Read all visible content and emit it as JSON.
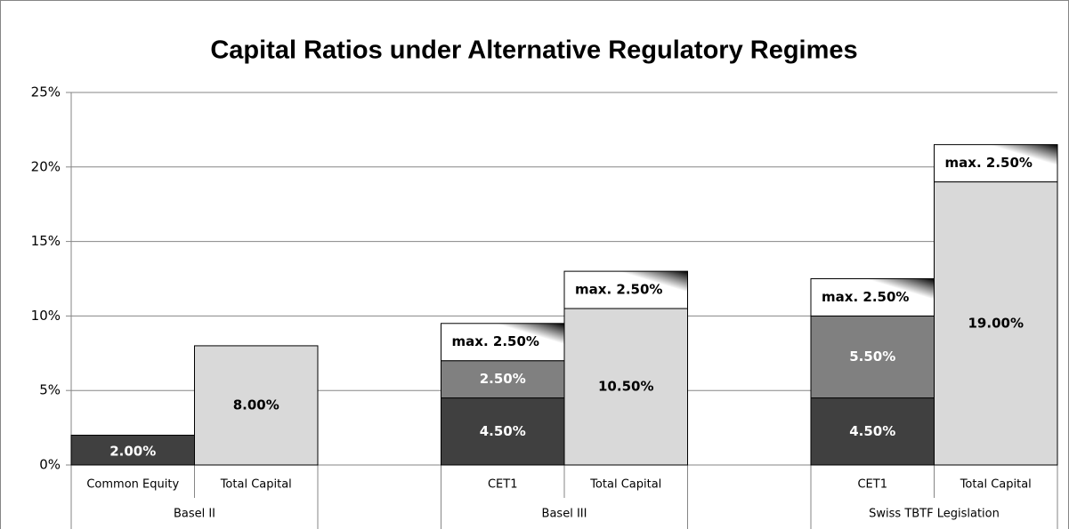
{
  "chart_data": {
    "type": "bar",
    "stacked": true,
    "title": "Capital Ratios under Alternative Regulatory Regimes",
    "groups": [
      {
        "label": "Basel II",
        "categories": [
          "Common Equity",
          "Total Capital"
        ]
      },
      {
        "label": "Basel III",
        "categories": [
          "CET1",
          "Total Capital"
        ]
      },
      {
        "label": "Swiss TBTF Legislation",
        "categories": [
          "CET1",
          "Total Capital"
        ]
      }
    ],
    "series": [
      {
        "color": "#404040",
        "label_color": "#ffffff",
        "values": [
          2.0,
          null,
          4.5,
          null,
          4.5,
          null
        ],
        "value_labels": [
          "2.00%",
          null,
          "4.50%",
          null,
          "4.50%",
          null
        ]
      },
      {
        "color": "#808080",
        "label_color": "#ffffff",
        "values": [
          null,
          null,
          2.5,
          null,
          5.5,
          null
        ],
        "value_labels": [
          null,
          null,
          "2.50%",
          null,
          "5.50%",
          null
        ]
      },
      {
        "color": "#d9d9d9",
        "label_color": "#000000",
        "values": [
          null,
          8.0,
          null,
          10.5,
          null,
          19.0
        ],
        "value_labels": [
          null,
          "8.00%",
          null,
          "10.50%",
          null,
          "19.00%"
        ]
      },
      {
        "color": "#000000",
        "label_color": "#000000",
        "values": [
          null,
          null,
          2.5,
          2.5,
          2.5,
          2.5
        ],
        "value_labels": [
          null,
          null,
          "max. 2.50%",
          "max. 2.50%",
          "max. 2.50%",
          "max. 2.50%"
        ]
      }
    ],
    "ylim": [
      0,
      25
    ],
    "yticks": [
      {
        "value": 0,
        "label": "0%"
      },
      {
        "value": 5,
        "label": "5%"
      },
      {
        "value": 10,
        "label": "10%"
      },
      {
        "value": 15,
        "label": "15%"
      },
      {
        "value": 20,
        "label": "20%"
      },
      {
        "value": 25,
        "label": "25%"
      }
    ],
    "grid": true
  }
}
